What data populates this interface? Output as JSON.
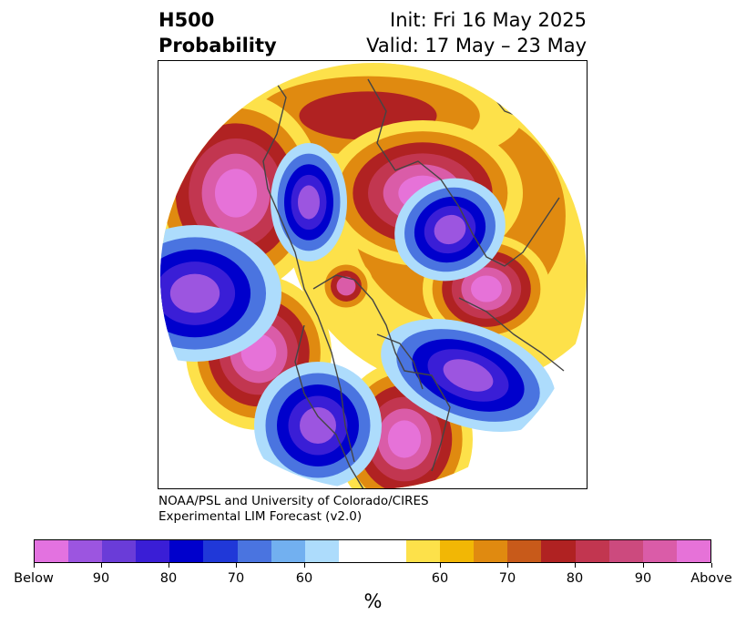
{
  "header": {
    "title_line1": "H500",
    "title_line2": "Probability",
    "init_text": "Init: Fri 16 May 2025",
    "valid_text": "Valid: 17 May – 23 May"
  },
  "credit": {
    "line1": "NOAA/PSL and University of Colorado/CIRES",
    "line2": "Experimental LIM Forecast (v2.0)"
  },
  "colorbar": {
    "colors": [
      "#e372e0",
      "#9c55e0",
      "#6a3cd8",
      "#3a1ed6",
      "#0000cc",
      "#2038d8",
      "#4a74e0",
      "#72b0f0",
      "#addcfc",
      "#ffffff",
      "#ffffff",
      "#fde14a",
      "#f2b705",
      "#e08a10",
      "#c85a1a",
      "#b02222",
      "#c23650",
      "#cc4a7e",
      "#da5ca8",
      "#e672d8"
    ],
    "tick_labels": [
      "Below",
      "90",
      "80",
      "70",
      "60",
      "60",
      "70",
      "80",
      "90",
      "Above"
    ],
    "unit": "%"
  },
  "map": {
    "projection": "north-polar-stereographic",
    "palette": {
      "above_strong": "#e672d8",
      "above_high": "#da5ca8",
      "above_mid": "#c23650",
      "above_low": "#b02222",
      "above_60": "#e08a10",
      "above_weak": "#fde14a",
      "below_strong": "#9c55e0",
      "below_high": "#3a1ed6",
      "below_mid": "#0000cc",
      "below_low": "#4a74e0",
      "below_weak": "#addcfc",
      "coast": "#444444"
    }
  }
}
